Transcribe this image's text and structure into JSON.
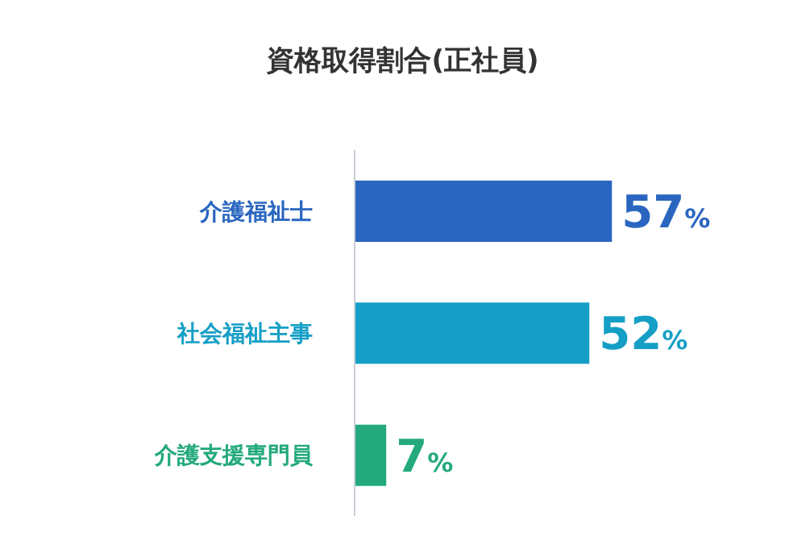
{
  "chart_data": {
    "type": "bar",
    "orientation": "horizontal",
    "title": "資格取得割合(正社員)",
    "categories": [
      "介護福祉士",
      "社会福祉主事",
      "介護支援専門員"
    ],
    "values": [
      57,
      52,
      7
    ],
    "colors": [
      "#2a66c0",
      "#169fc6",
      "#23a97c"
    ],
    "value_labels": [
      "57%",
      "52%",
      "7%"
    ],
    "xlim": [
      0,
      100
    ],
    "tick_labels": "y"
  }
}
